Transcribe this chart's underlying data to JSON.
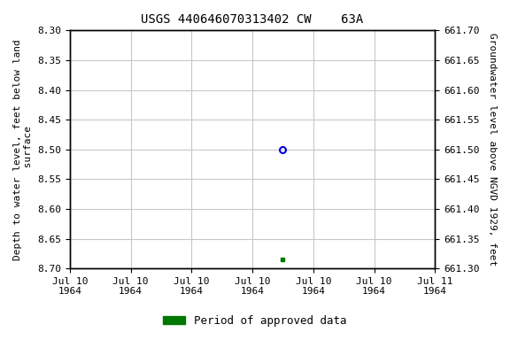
{
  "title": "USGS 440646070313402 CW    63A",
  "ylabel_left": "Depth to water level, feet below land\n surface",
  "ylabel_right": "Groundwater level above NGVD 1929, feet",
  "ylim_left": [
    8.7,
    8.3
  ],
  "ylim_right": [
    661.3,
    661.7
  ],
  "yticks_left": [
    8.3,
    8.35,
    8.4,
    8.45,
    8.5,
    8.55,
    8.6,
    8.65,
    8.7
  ],
  "yticks_right": [
    661.7,
    661.65,
    661.6,
    661.55,
    661.5,
    661.45,
    661.4,
    661.35,
    661.3
  ],
  "point_blue_x": 3.5,
  "point_blue_y": 8.5,
  "point_green_x": 3.5,
  "point_green_y": 8.685,
  "point_blue_color": "#0000dd",
  "point_green_color": "#007700",
  "background_color": "#ffffff",
  "grid_color": "#c8c8c8",
  "title_fontsize": 10,
  "axis_label_fontsize": 8,
  "tick_label_fontsize": 8,
  "legend_label": "Period of approved data",
  "legend_color": "#007700",
  "xtick_labels": [
    "Jul 10\n1964",
    "Jul 10\n1964",
    "Jul 10\n1964",
    "Jul 10\n1964",
    "Jul 10\n1964",
    "Jul 10\n1964",
    "Jul 11\n1964"
  ],
  "xlim": [
    0,
    6
  ]
}
